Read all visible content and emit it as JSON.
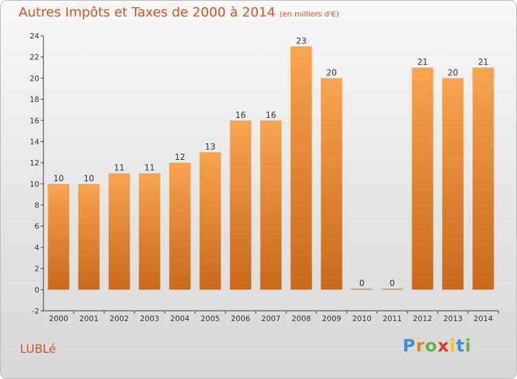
{
  "chart_data": {
    "type": "bar",
    "title": "Autres Impôts et Taxes de 2000 à 2014",
    "subtitle": "(en milliers d'€)",
    "categories": [
      "2000",
      "2001",
      "2002",
      "2003",
      "2004",
      "2005",
      "2006",
      "2007",
      "2008",
      "2009",
      "2010",
      "2011",
      "2012",
      "2013",
      "2014"
    ],
    "values": [
      10,
      10,
      11,
      11,
      12,
      13,
      16,
      16,
      23,
      20,
      0,
      0,
      21,
      20,
      21
    ],
    "ylim": [
      -2,
      24
    ],
    "yticks": [
      -2,
      0,
      2,
      4,
      6,
      8,
      10,
      12,
      14,
      16,
      18,
      20,
      22,
      24
    ],
    "grid": false,
    "bar_color_top": "#f7a450",
    "bar_color_bottom": "#c8691b"
  },
  "commune": "LUBLé",
  "brand": {
    "letters": [
      "P",
      "r",
      "o",
      "x",
      "i",
      "t",
      "i"
    ],
    "colors": [
      "#3b8fd6",
      "#f07e1a",
      "#6ab04c",
      "#e2382c",
      "#f5c518",
      "#3b8fd6",
      "#6ab04c"
    ]
  }
}
